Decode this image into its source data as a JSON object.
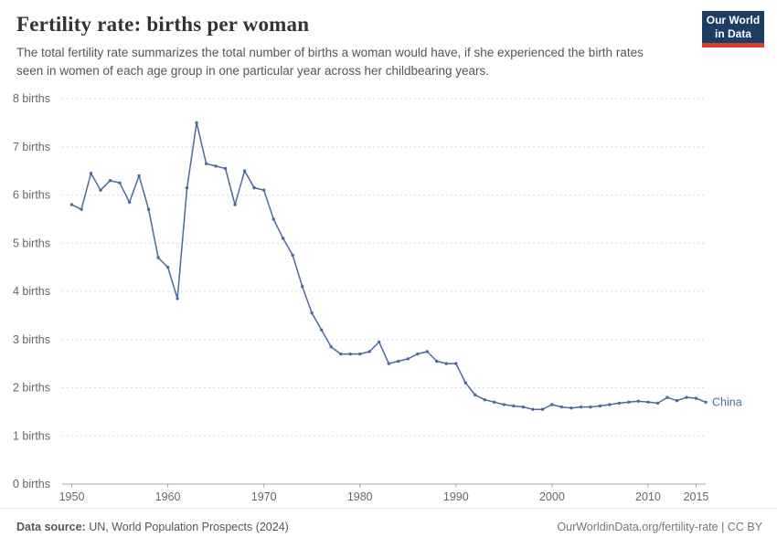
{
  "header": {
    "title": "Fertility rate: births per woman",
    "subtitle": "The total fertility rate summarizes the total number of births a woman would have, if she experienced the birth rates seen in women of each age group in one particular year across her childbearing years.",
    "logo": {
      "line1": "Our World",
      "line2": "in Data"
    }
  },
  "chart_data": {
    "type": "line",
    "title": "Fertility rate: births per woman",
    "xlabel": "",
    "ylabel": "",
    "xlim": [
      1949,
      2016
    ],
    "ylim": [
      0,
      8
    ],
    "x_ticks": [
      1950,
      1960,
      1970,
      1980,
      1990,
      2000,
      2010,
      2015
    ],
    "y_ticks": [
      0,
      1,
      2,
      3,
      4,
      5,
      6,
      7,
      8
    ],
    "y_tick_suffix": " births",
    "grid": "dashed-horizontal",
    "legend_position": "end-of-line-label",
    "series": [
      {
        "name": "China",
        "color": "#4c6a9c",
        "x": [
          1950,
          1951,
          1952,
          1953,
          1954,
          1955,
          1956,
          1957,
          1958,
          1959,
          1960,
          1961,
          1962,
          1963,
          1964,
          1965,
          1966,
          1967,
          1968,
          1969,
          1970,
          1971,
          1972,
          1973,
          1974,
          1975,
          1976,
          1977,
          1978,
          1979,
          1980,
          1981,
          1982,
          1983,
          1984,
          1985,
          1986,
          1987,
          1988,
          1989,
          1990,
          1991,
          1992,
          1993,
          1994,
          1995,
          1996,
          1997,
          1998,
          1999,
          2000,
          2001,
          2002,
          2003,
          2004,
          2005,
          2006,
          2007,
          2008,
          2009,
          2010,
          2011,
          2012,
          2013,
          2014,
          2015,
          2016
        ],
        "values": [
          5.8,
          5.7,
          6.45,
          6.1,
          6.3,
          6.25,
          5.85,
          6.4,
          5.7,
          4.7,
          4.5,
          3.85,
          6.15,
          7.5,
          6.65,
          6.6,
          6.55,
          5.8,
          6.5,
          6.15,
          6.1,
          5.5,
          5.1,
          4.75,
          4.1,
          3.55,
          3.2,
          2.85,
          2.7,
          2.7,
          2.7,
          2.75,
          2.95,
          2.5,
          2.55,
          2.6,
          2.7,
          2.75,
          2.55,
          2.5,
          2.5,
          2.1,
          1.85,
          1.75,
          1.7,
          1.65,
          1.62,
          1.6,
          1.55,
          1.55,
          1.65,
          1.6,
          1.58,
          1.6,
          1.6,
          1.62,
          1.65,
          1.68,
          1.7,
          1.72,
          1.7,
          1.68,
          1.8,
          1.73,
          1.8,
          1.78,
          1.7
        ]
      }
    ]
  },
  "footer": {
    "source_label": "Data source:",
    "source_text": " UN, World Population Prospects (2024)",
    "right_text": "OurWorldinData.org/fertility-rate | CC BY"
  },
  "colors": {
    "line": "#4c6a9c",
    "grid": "#dcdcdc",
    "axis": "#a8a8a8",
    "title": "#333333",
    "subtitle": "#555555",
    "logo_bg": "#1d3d63",
    "logo_red": "#dc3a2f"
  }
}
